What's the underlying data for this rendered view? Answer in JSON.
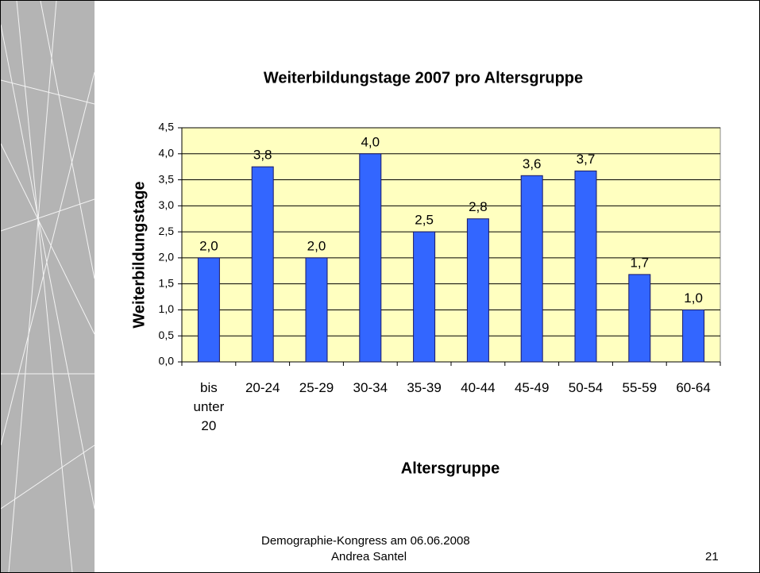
{
  "chart_data": {
    "type": "bar",
    "title": "Weiterbildungstage 2007 pro Altersgruppe",
    "x_label": "Altersgruppe",
    "y_label": "Weiterbildungstage",
    "categories": [
      "bis unter 20",
      "20-24",
      "25-29",
      "30-34",
      "35-39",
      "40-44",
      "45-49",
      "50-54",
      "55-59",
      "60-64"
    ],
    "values": [
      2.0,
      3.75,
      2.0,
      4.0,
      2.5,
      2.75,
      3.58,
      3.67,
      1.68,
      1.0
    ],
    "value_labels": [
      "2,0",
      "3,8",
      "2,0",
      "4,0",
      "2,5",
      "2,8",
      "3,6",
      "3,7",
      "1,7",
      "1,0"
    ],
    "color": "#3366ff",
    "plot_background": "#ffffc0",
    "ylim": [
      0,
      4.5
    ],
    "yticks": [
      {
        "value": 0,
        "label": "0,0"
      },
      {
        "value": 0.5,
        "label": "0,5"
      },
      {
        "value": 1,
        "label": "1,0"
      },
      {
        "value": 1.5,
        "label": "1,5"
      },
      {
        "value": 2,
        "label": "2,0"
      },
      {
        "value": 2.5,
        "label": "2,5"
      },
      {
        "value": 3,
        "label": "3,0"
      },
      {
        "value": 3.5,
        "label": "3,5"
      },
      {
        "value": 4,
        "label": "4,0"
      },
      {
        "value": 4.5,
        "label": "4,5"
      }
    ],
    "grid": true
  },
  "footer": {
    "event": "Demographie-Kongress am 06.06.2008",
    "author": "Andrea Santel",
    "page": "21"
  }
}
